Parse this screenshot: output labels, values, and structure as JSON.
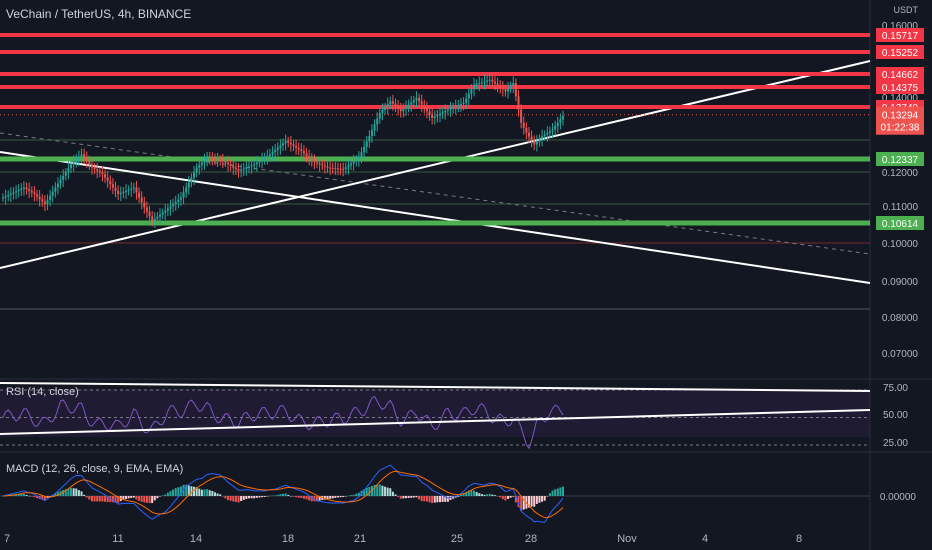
{
  "header": {
    "title": "VeChain / TetherUS, 4h, BINANCE",
    "unit": "USDT"
  },
  "rsi": {
    "label": "RSI (14, close)",
    "ticks": [
      "75.00",
      "50.00",
      "25.00"
    ]
  },
  "macd": {
    "label": "MACD (12, 26, close, 9, EMA, EMA)",
    "tick": "0.00000"
  },
  "x_ticks": [
    "7",
    "11",
    "14",
    "18",
    "21",
    "25",
    "28",
    "Nov",
    "4",
    "8"
  ],
  "colors": {
    "bg": "#131722",
    "red": "#f23645",
    "green": "#4caf50",
    "up": "#26a69a",
    "down": "#ef5350"
  },
  "chart_data": {
    "type": "candlestick",
    "title": "VeChain / TetherUS, 4h, BINANCE",
    "ylabel": "USDT",
    "ylim": [
      0.065,
      0.161
    ],
    "y_ticks": [
      "0.16000",
      "0.14000",
      "0.12000",
      "0.11000",
      "0.10000",
      "0.09000",
      "0.08000",
      "0.07000"
    ],
    "last_price": {
      "value": "0.13294",
      "countdown": "01:22:38"
    },
    "resistance_labels": [
      "0.15717",
      "0.15252",
      "0.14662",
      "0.14375",
      "0.13749"
    ],
    "support_labels": [
      "0.12337",
      "0.10614"
    ],
    "price_path": [
      [
        0,
        0.108
      ],
      [
        4,
        0.1095
      ],
      [
        8,
        0.111
      ],
      [
        12,
        0.109
      ],
      [
        16,
        0.106
      ],
      [
        20,
        0.111
      ],
      [
        26,
        0.118
      ],
      [
        30,
        0.121
      ],
      [
        34,
        0.117
      ],
      [
        38,
        0.115
      ],
      [
        44,
        0.109
      ],
      [
        50,
        0.111
      ],
      [
        54,
        0.105
      ],
      [
        57,
        0.101
      ],
      [
        62,
        0.104
      ],
      [
        68,
        0.108
      ],
      [
        74,
        0.117
      ],
      [
        78,
        0.12
      ],
      [
        84,
        0.119
      ],
      [
        90,
        0.116
      ],
      [
        96,
        0.118
      ],
      [
        102,
        0.121
      ],
      [
        108,
        0.125
      ],
      [
        114,
        0.122
      ],
      [
        118,
        0.119
      ],
      [
        124,
        0.117
      ],
      [
        130,
        0.1165
      ],
      [
        136,
        0.12
      ],
      [
        140,
        0.1265
      ],
      [
        144,
        0.1335
      ],
      [
        148,
        0.137
      ],
      [
        152,
        0.134
      ],
      [
        158,
        0.138
      ],
      [
        164,
        0.132
      ],
      [
        170,
        0.1345
      ],
      [
        176,
        0.1365
      ],
      [
        180,
        0.142
      ],
      [
        186,
        0.1435
      ],
      [
        192,
        0.14
      ],
      [
        195,
        0.1425
      ],
      [
        198,
        0.1305
      ],
      [
        200,
        0.1275
      ],
      [
        203,
        0.124
      ],
      [
        206,
        0.1265
      ],
      [
        210,
        0.1285
      ],
      [
        214,
        0.1325
      ]
    ]
  }
}
